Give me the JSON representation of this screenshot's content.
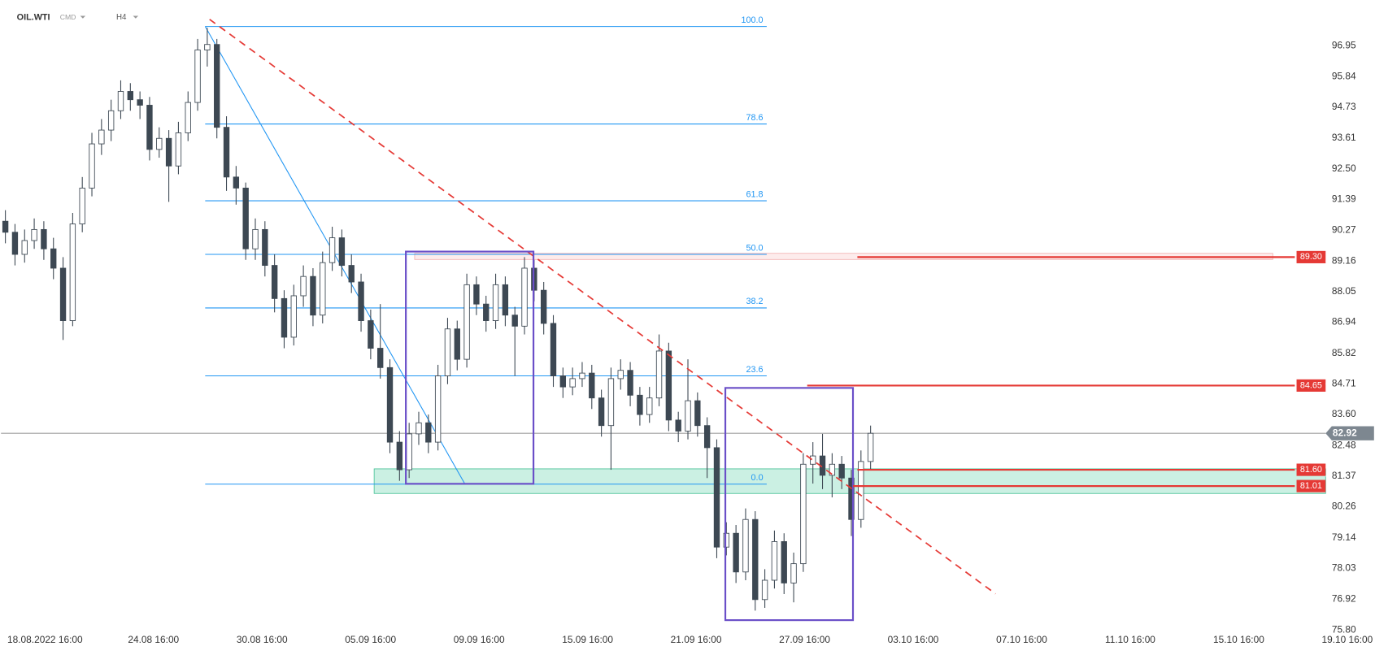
{
  "chart_data": {
    "type": "candlestick",
    "symbol": "OIL.WTI",
    "market": "CMD",
    "interval": "H4",
    "ylim": [
      75.04,
      98.61
    ],
    "yticks": [
      96.95,
      95.84,
      94.73,
      93.61,
      {
        "value": 92.5,
        "label": "92.50"
      },
      91.39,
      90.27,
      89.16,
      88.05,
      86.94,
      85.82,
      84.71,
      {
        "value": 83.6,
        "label": "83.60"
      },
      82.48,
      81.37,
      80.26,
      79.14,
      78.03,
      76.92,
      {
        "value": 75.8,
        "label": "75.80"
      }
    ],
    "x_labels": [
      "18.08.2022 16:00",
      "24.08 16:00",
      "30.08 16:00",
      "05.09 16:00",
      "09.09 16:00",
      "15.09 16:00",
      "21.09 16:00",
      "27.09 16:00",
      "03.10 16:00",
      "07.10 16:00",
      "11.10 16:00",
      "15.10 16:00",
      "19.10 16:00"
    ],
    "up_color": "#ffffff",
    "down_color": "#3d4853",
    "ohlc": [
      [
        90.6,
        91.0,
        89.8,
        90.2
      ],
      [
        90.2,
        90.5,
        89.0,
        89.4
      ],
      [
        89.4,
        90.3,
        89.1,
        89.9
      ],
      [
        89.9,
        90.7,
        89.6,
        90.3
      ],
      [
        90.3,
        90.6,
        89.2,
        89.6
      ],
      [
        89.6,
        90.0,
        88.5,
        88.9
      ],
      [
        88.9,
        89.3,
        86.3,
        87.0
      ],
      [
        87.0,
        90.9,
        86.8,
        90.5
      ],
      [
        90.5,
        92.2,
        90.2,
        91.8
      ],
      [
        91.8,
        93.8,
        91.5,
        93.4
      ],
      [
        93.4,
        94.3,
        93.0,
        93.9
      ],
      [
        93.9,
        95.0,
        93.5,
        94.6
      ],
      [
        94.6,
        95.7,
        94.3,
        95.3
      ],
      [
        95.3,
        95.6,
        94.6,
        95.0
      ],
      [
        95.0,
        95.3,
        94.3,
        94.8
      ],
      [
        94.8,
        95.1,
        92.8,
        93.2
      ],
      [
        93.2,
        94.0,
        92.9,
        93.6
      ],
      [
        93.6,
        93.9,
        91.3,
        92.6
      ],
      [
        92.6,
        94.2,
        92.3,
        93.8
      ],
      [
        93.8,
        95.3,
        93.5,
        94.9
      ],
      [
        94.9,
        97.2,
        94.6,
        96.8
      ],
      [
        96.8,
        97.6,
        96.2,
        97.0
      ],
      [
        97.0,
        97.2,
        93.6,
        94.0
      ],
      [
        94.0,
        94.4,
        91.7,
        92.2
      ],
      [
        92.2,
        92.6,
        91.2,
        91.8
      ],
      [
        91.8,
        92.0,
        89.2,
        89.6
      ],
      [
        89.6,
        90.7,
        89.2,
        90.3
      ],
      [
        90.3,
        90.6,
        88.6,
        89.0
      ],
      [
        89.0,
        89.4,
        87.3,
        87.8
      ],
      [
        87.8,
        88.1,
        86.0,
        86.4
      ],
      [
        86.4,
        88.3,
        86.1,
        87.9
      ],
      [
        87.9,
        89.0,
        87.5,
        88.6
      ],
      [
        88.6,
        88.9,
        86.8,
        87.2
      ],
      [
        87.2,
        89.5,
        86.9,
        89.1
      ],
      [
        89.1,
        90.4,
        88.8,
        90.0
      ],
      [
        90.0,
        90.3,
        88.6,
        89.0
      ],
      [
        89.0,
        89.4,
        88.0,
        88.4
      ],
      [
        88.4,
        88.7,
        86.6,
        87.0
      ],
      [
        87.0,
        87.4,
        85.6,
        86.0
      ],
      [
        86.0,
        87.6,
        84.9,
        85.3
      ],
      [
        85.3,
        85.6,
        82.2,
        82.6
      ],
      [
        82.6,
        83.0,
        81.2,
        81.6
      ],
      [
        81.6,
        83.3,
        81.3,
        82.9
      ],
      [
        82.9,
        83.7,
        82.5,
        83.3
      ],
      [
        83.3,
        83.6,
        82.2,
        82.6
      ],
      [
        82.6,
        85.4,
        82.3,
        85.0
      ],
      [
        85.0,
        87.1,
        84.7,
        86.7
      ],
      [
        86.7,
        87.0,
        85.2,
        85.6
      ],
      [
        85.6,
        88.7,
        85.3,
        88.3
      ],
      [
        88.3,
        88.6,
        87.2,
        87.6
      ],
      [
        87.6,
        87.9,
        86.6,
        87.0
      ],
      [
        87.0,
        88.7,
        86.7,
        88.3
      ],
      [
        88.3,
        88.6,
        86.8,
        87.2
      ],
      [
        87.2,
        87.5,
        85.0,
        86.8
      ],
      [
        86.8,
        89.3,
        86.5,
        88.9
      ],
      [
        88.9,
        89.2,
        87.7,
        88.1
      ],
      [
        88.1,
        88.4,
        86.5,
        86.9
      ],
      [
        86.9,
        87.2,
        84.6,
        85.0
      ],
      [
        85.0,
        85.3,
        84.2,
        84.6
      ],
      [
        84.6,
        85.3,
        84.3,
        84.9
      ],
      [
        84.9,
        85.5,
        84.6,
        85.1
      ],
      [
        85.1,
        85.4,
        83.8,
        84.2
      ],
      [
        84.2,
        84.5,
        82.8,
        83.2
      ],
      [
        83.2,
        85.3,
        81.6,
        84.9
      ],
      [
        84.9,
        85.6,
        84.5,
        85.2
      ],
      [
        85.2,
        85.5,
        83.9,
        84.3
      ],
      [
        84.3,
        84.6,
        83.2,
        83.6
      ],
      [
        83.6,
        84.6,
        83.3,
        84.2
      ],
      [
        84.2,
        86.5,
        83.9,
        85.9
      ],
      [
        85.9,
        86.2,
        83.0,
        83.4
      ],
      [
        83.4,
        83.7,
        82.6,
        83.0
      ],
      [
        83.0,
        85.6,
        82.7,
        84.1
      ],
      [
        84.1,
        84.4,
        82.8,
        83.2
      ],
      [
        83.2,
        83.5,
        81.3,
        82.4
      ],
      [
        82.4,
        82.7,
        78.4,
        78.8
      ],
      [
        78.8,
        79.7,
        78.5,
        79.3
      ],
      [
        79.3,
        79.6,
        77.5,
        77.9
      ],
      [
        77.9,
        80.2,
        77.6,
        79.8
      ],
      [
        79.8,
        80.1,
        76.5,
        76.9
      ],
      [
        76.9,
        78.0,
        76.6,
        77.6
      ],
      [
        77.6,
        79.4,
        77.3,
        79.0
      ],
      [
        79.0,
        79.3,
        77.1,
        77.5
      ],
      [
        77.5,
        78.6,
        76.8,
        78.2
      ],
      [
        78.2,
        82.2,
        77.9,
        81.8
      ],
      [
        81.8,
        82.6,
        81.1,
        82.1
      ],
      [
        82.1,
        82.9,
        80.9,
        81.4
      ],
      [
        81.4,
        82.2,
        80.6,
        81.8
      ],
      [
        81.8,
        82.1,
        80.9,
        81.3
      ],
      [
        81.3,
        81.6,
        79.2,
        79.8
      ],
      [
        79.8,
        82.3,
        79.5,
        81.9
      ],
      [
        81.9,
        83.2,
        81.6,
        82.92
      ]
    ],
    "fib_color": "#2196f3",
    "fib_levels": [
      {
        "label": "100.0",
        "price": 97.65
      },
      {
        "label": "78.6",
        "price": 94.12
      },
      {
        "label": "61.8",
        "price": 91.34
      },
      {
        "label": "50.0",
        "price": 89.4
      },
      {
        "label": "38.2",
        "price": 87.46
      },
      {
        "label": "23.6",
        "price": 85.0
      },
      {
        "label": "0.0",
        "price": 81.08
      }
    ],
    "level_color": "#e53935",
    "levels": [
      {
        "value": 89.3,
        "label": "89.30"
      },
      84.65,
      {
        "value": 81.6,
        "label": "81.60"
      },
      81.01
    ],
    "last_price": 82.92
  }
}
